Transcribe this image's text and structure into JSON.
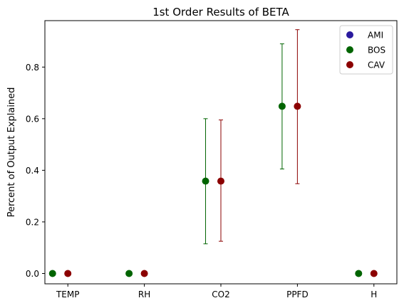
{
  "chart_data": {
    "type": "scatter",
    "title": "1st Order Results of BETA",
    "xlabel": "",
    "ylabel": "Percent of Output Explained",
    "categories": [
      "TEMP",
      "RH",
      "CO2",
      "PPFD",
      "H"
    ],
    "ylim": [
      -0.04,
      0.98
    ],
    "yticks": [
      0.0,
      0.2,
      0.4,
      0.6,
      0.8
    ],
    "ytick_labels": [
      "0.0",
      "0.2",
      "0.4",
      "0.6",
      "0.8"
    ],
    "grid": false,
    "legend_position": "top-right",
    "series": [
      {
        "name": "AMI",
        "color": "#2a1a9e",
        "offset": -0.2,
        "values": [],
        "lower": [],
        "upper": []
      },
      {
        "name": "BOS",
        "color": "#006400",
        "offset": -0.2,
        "values": [
          0.0,
          0.0,
          0.358,
          0.648,
          0.0
        ],
        "lower": [
          null,
          null,
          0.115,
          0.405,
          null
        ],
        "upper": [
          null,
          null,
          0.6,
          0.89,
          null
        ]
      },
      {
        "name": "CAV",
        "color": "#8b0000",
        "offset": 0.0,
        "values": [
          0.0,
          0.0,
          0.358,
          0.648,
          0.0
        ],
        "lower": [
          null,
          null,
          0.125,
          0.348,
          null
        ],
        "upper": [
          null,
          null,
          0.595,
          0.945,
          null
        ]
      }
    ]
  }
}
